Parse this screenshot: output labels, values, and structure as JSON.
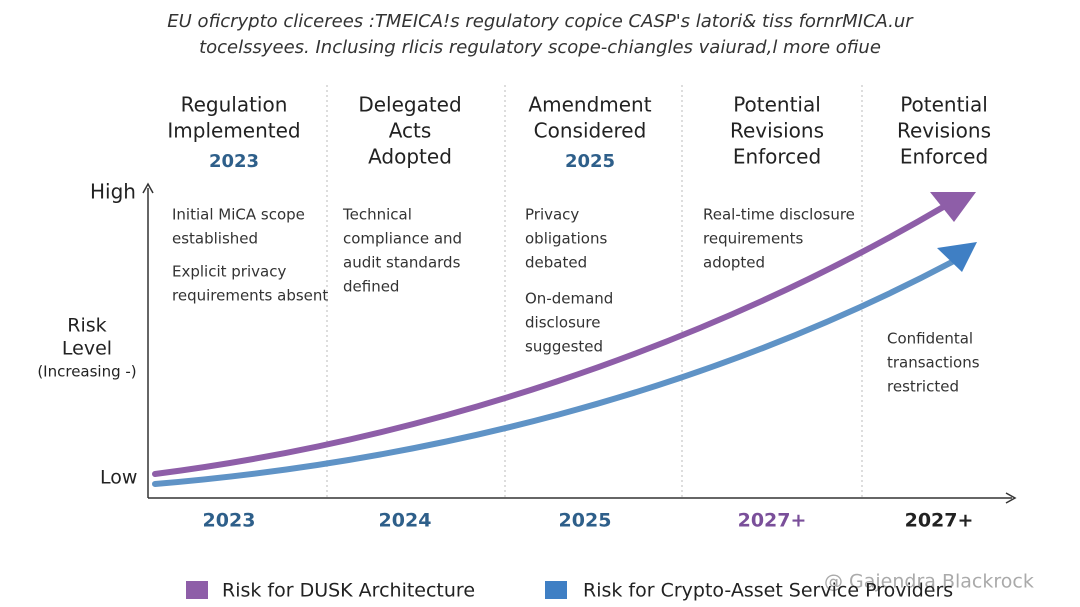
{
  "title": {
    "lines": [
      "EU oficrypto clicerees :TMEICA!s regulatory copice CASP's latori& tiss fornrMICA.ur",
      "tocelssyees.  Inclusing rlicis regulatory scope-chiangles vaiurad,l more ofiue"
    ]
  },
  "y_axis": {
    "high": "High",
    "low": "Low",
    "label": [
      "Risk",
      "Level",
      "(Increasing -)"
    ]
  },
  "columns": [
    {
      "header": [
        "Regulation",
        "Implemented"
      ],
      "year": "2023",
      "notes": [
        [
          "Initial MiCA scope",
          "established"
        ],
        [
          "Explicit privacy",
          "requirements absent"
        ]
      ],
      "x_label": "2023"
    },
    {
      "header": [
        "Delegated",
        "Acts",
        "Adopted"
      ],
      "notes": [
        [
          "Technical",
          "compliance and",
          "audit standards",
          "defined"
        ]
      ],
      "x_label": "2024"
    },
    {
      "header": [
        "Amendment",
        "Considered"
      ],
      "year": "2025",
      "notes": [
        [
          "Privacy",
          "obligations",
          "debated"
        ],
        [
          "On-demand",
          "disclosure",
          "suggested"
        ]
      ],
      "x_label": "2025"
    },
    {
      "header": [
        "Potential",
        "Revisions",
        "Enforced"
      ],
      "notes": [
        [
          "Real-time disclosure",
          "requirements",
          "adopted"
        ]
      ],
      "x_label": "2027+"
    },
    {
      "header": [
        "Potential",
        "Revisions",
        "Enforced"
      ],
      "notes": [
        [
          "Confidental",
          "transactions",
          "restricted"
        ]
      ],
      "x_label": "2027+"
    }
  ],
  "legend": [
    {
      "name": "Risk for DUSK Architecture",
      "color": "#8e5ea8"
    },
    {
      "name": "Risk for Crypto-Asset Service Providers",
      "color": "#3f7fc4"
    }
  ],
  "watermark": "@ Gajendra Blackrock"
}
